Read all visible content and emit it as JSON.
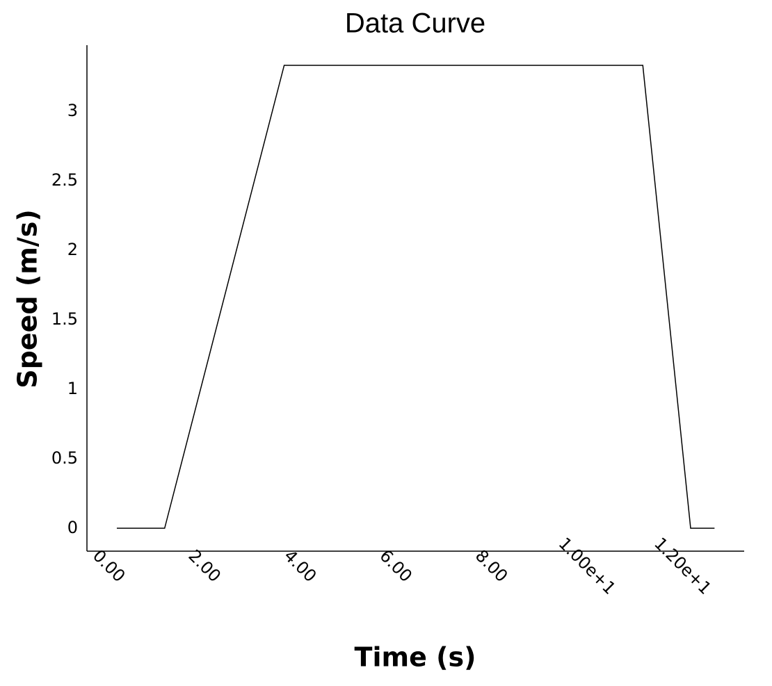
{
  "chart_data": {
    "type": "line",
    "title": "Data Curve",
    "x_label": "Time (s)",
    "y_label": "Speed (m/s)",
    "x": [
      0,
      1,
      3.5,
      11,
      12,
      12.5
    ],
    "series": [
      {
        "name": "Speed",
        "color": "#000000",
        "values": [
          0,
          0,
          3.33,
          3.33,
          0,
          0
        ]
      }
    ],
    "xlim": [
      -0.625,
      13.12
    ],
    "xticks": [
      {
        "value": 0,
        "label": "0.00"
      },
      {
        "value": 2,
        "label": "2.00"
      },
      {
        "value": 4,
        "label": "4.00"
      },
      {
        "value": 6,
        "label": "6.00"
      },
      {
        "value": 8,
        "label": "8.00"
      },
      {
        "value": 10,
        "label": "1.00e+1"
      },
      {
        "value": 12,
        "label": "1.20e+1"
      }
    ],
    "ylim": [
      -0.165,
      3.475
    ],
    "yticks": [
      0,
      0.5,
      1,
      1.5,
      2,
      2.5,
      3
    ],
    "grid": false
  }
}
